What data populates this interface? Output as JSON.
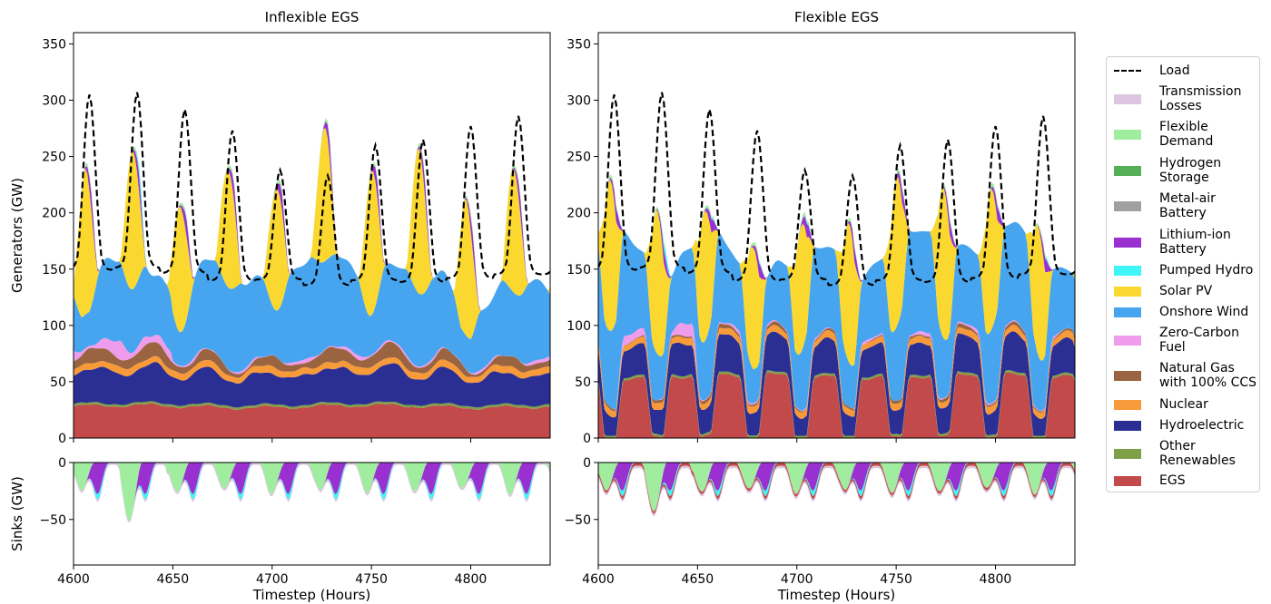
{
  "chart_data": [
    {
      "type": "area",
      "title": "Inflexible EGS",
      "xlabel": "",
      "ylabel": "Generators (GW)",
      "xlim": [
        4600,
        4840
      ],
      "ylim": [
        0,
        360
      ],
      "xticks": [
        4600,
        4650,
        4700,
        4750,
        4800
      ],
      "yticks": [
        0,
        50,
        100,
        150,
        200,
        250,
        300,
        350
      ],
      "stacked": true,
      "day_peak_hours": [
        4608,
        4632,
        4656,
        4680,
        4704,
        4728,
        4752,
        4776,
        4800,
        4824
      ],
      "series": [
        {
          "name": "EGS",
          "typical": 28,
          "range": [
            20,
            32
          ]
        },
        {
          "name": "Other Renewables",
          "typical": 2
        },
        {
          "name": "Hydroelectric",
          "typical": 25,
          "range": [
            20,
            35
          ]
        },
        {
          "name": "Nuclear",
          "typical": 5
        },
        {
          "name": "Natural Gas with 100% CCS",
          "typical": 8,
          "range": [
            0,
            20
          ]
        },
        {
          "name": "Zero-Carbon Fuel",
          "typical": 8,
          "range": [
            0,
            35
          ]
        },
        {
          "name": "Onshore Wind",
          "typical": 70,
          "range": [
            40,
            120
          ]
        },
        {
          "name": "Solar PV",
          "daily_peak": 130,
          "daytime_only": true
        },
        {
          "name": "Lithium-ion Battery",
          "evening_peak": 15
        },
        {
          "name": "Pumped Hydro",
          "evening_peak": 5
        },
        {
          "name": "Flexible Demand",
          "evening_peak": 5
        }
      ],
      "load": {
        "name": "Load",
        "style": "dashed",
        "daily_peaks": [
          305,
          307,
          292,
          273,
          238,
          233,
          260,
          265,
          277,
          286
        ],
        "daily_troughs": [
          140,
          142,
          138,
          132,
          135,
          130,
          133,
          131,
          134,
          137
        ]
      }
    },
    {
      "type": "area",
      "title": "",
      "xlabel": "Timestep (Hours)",
      "ylabel": "Sinks (GW)",
      "xlim": [
        4600,
        4840
      ],
      "ylim": [
        -90,
        0
      ],
      "xticks": [
        4600,
        4650,
        4700,
        4750,
        4800
      ],
      "yticks": [
        0,
        -50
      ],
      "series": [
        {
          "name": "Flexible Demand",
          "typical_min": -30,
          "extreme_min": -57
        },
        {
          "name": "Lithium-ion Battery",
          "typical_min": -28
        },
        {
          "name": "Pumped Hydro",
          "typical_min": -5
        },
        {
          "name": "Transmission Losses",
          "typical_min": -2
        }
      ]
    },
    {
      "type": "area",
      "title": "Flexible EGS",
      "xlabel": "",
      "ylabel": "",
      "xlim": [
        4600,
        4840
      ],
      "ylim": [
        0,
        360
      ],
      "xticks": [
        4600,
        4650,
        4700,
        4750,
        4800
      ],
      "yticks": [
        0,
        50,
        100,
        150,
        200,
        250,
        300,
        350
      ],
      "stacked": true,
      "day_peak_hours": [
        4608,
        4632,
        4656,
        4680,
        4704,
        4728,
        4752,
        4776,
        4800,
        4824
      ],
      "series": [
        {
          "name": "EGS",
          "night_level": 55,
          "day_level": 2,
          "range": [
            0,
            60
          ]
        },
        {
          "name": "Other Renewables",
          "typical": 2
        },
        {
          "name": "Hydroelectric",
          "typical": 25,
          "range": [
            10,
            40
          ]
        },
        {
          "name": "Nuclear",
          "typical": 5
        },
        {
          "name": "Natural Gas with 100% CCS",
          "typical": 3,
          "range": [
            0,
            8
          ]
        },
        {
          "name": "Zero-Carbon Fuel",
          "typical": 6,
          "range": [
            0,
            30
          ]
        },
        {
          "name": "Onshore Wind",
          "typical": 70,
          "range": [
            40,
            120
          ]
        },
        {
          "name": "Solar PV",
          "daily_peak": 135,
          "daytime_only": true
        },
        {
          "name": "Lithium-ion Battery",
          "evening_peak": 12
        },
        {
          "name": "Pumped Hydro",
          "evening_peak": 4
        },
        {
          "name": "Flexible Demand",
          "evening_peak": 5
        }
      ],
      "load": {
        "name": "Load",
        "style": "dashed",
        "daily_peaks": [
          305,
          307,
          292,
          273,
          238,
          233,
          260,
          265,
          277,
          286
        ],
        "daily_troughs": [
          140,
          142,
          138,
          132,
          135,
          130,
          133,
          131,
          134,
          137
        ]
      }
    },
    {
      "type": "area",
      "title": "",
      "xlabel": "Timestep (Hours)",
      "ylabel": "",
      "xlim": [
        4600,
        4840
      ],
      "ylim": [
        -90,
        0
      ],
      "xticks": [
        4600,
        4650,
        4700,
        4750,
        4800
      ],
      "yticks": [
        0,
        -50
      ],
      "series": [
        {
          "name": "Flexible Demand",
          "typical_min": -30,
          "extreme_min": -48
        },
        {
          "name": "Lithium-ion Battery",
          "typical_min": -25
        },
        {
          "name": "Pumped Hydro",
          "typical_min": -5
        },
        {
          "name": "EGS",
          "typical_min": -3
        },
        {
          "name": "Transmission Losses",
          "typical_min": -2
        }
      ]
    }
  ],
  "legend": {
    "placement": "right",
    "items": [
      {
        "label": "Load",
        "kind": "line",
        "color": "#000000"
      },
      {
        "label": "Transmission\nLosses",
        "kind": "patch",
        "color": "#dcc6e0"
      },
      {
        "label": "Flexible\nDemand",
        "kind": "patch",
        "color": "#a0eda0"
      },
      {
        "label": "Hydrogen\nStorage",
        "kind": "patch",
        "color": "#55b055"
      },
      {
        "label": "Metal-air\nBattery",
        "kind": "patch",
        "color": "#a0a0a0"
      },
      {
        "label": "Lithium-ion\nBattery",
        "kind": "patch",
        "color": "#9b30d0"
      },
      {
        "label": "Pumped Hydro",
        "kind": "patch",
        "color": "#3ff5f5"
      },
      {
        "label": "Solar PV",
        "kind": "patch",
        "color": "#fad830"
      },
      {
        "label": "Onshore Wind",
        "kind": "patch",
        "color": "#47a5ef"
      },
      {
        "label": "Zero-Carbon\nFuel",
        "kind": "patch",
        "color": "#ef9cec"
      },
      {
        "label": "Natural Gas\nwith 100% CCS",
        "kind": "patch",
        "color": "#9b6440"
      },
      {
        "label": "Nuclear",
        "kind": "patch",
        "color": "#f79a3a"
      },
      {
        "label": "Hydroelectric",
        "kind": "patch",
        "color": "#2b2e93"
      },
      {
        "label": "Other\nRenewables",
        "kind": "patch",
        "color": "#7fa049"
      },
      {
        "label": "EGS",
        "kind": "patch",
        "color": "#c24a4a"
      }
    ]
  }
}
